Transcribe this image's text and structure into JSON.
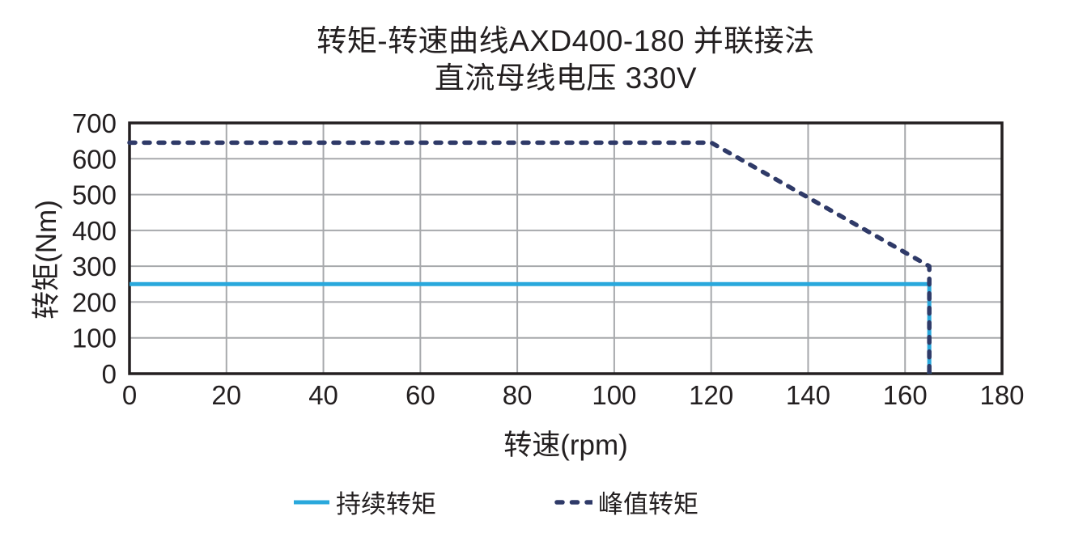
{
  "title": {
    "line1": "转矩-转速曲线AXD400-180 并联接法",
    "line2": "直流母线电压 330V"
  },
  "chart_data": {
    "type": "line",
    "title": "转矩-转速曲线AXD400-180 并联接法 直流母线电压 330V",
    "xlabel": "转速(rpm)",
    "ylabel": "转矩(Nm)",
    "xlim": [
      0,
      180
    ],
    "ylim": [
      0,
      700
    ],
    "xticks": [
      0,
      20,
      40,
      60,
      80,
      100,
      120,
      140,
      160,
      180
    ],
    "yticks": [
      0,
      100,
      200,
      300,
      400,
      500,
      600,
      700
    ],
    "grid": true,
    "grid_color": "#a7a9ac",
    "border_color": "#231f20",
    "text_color": "#231f20",
    "legend_position": "bottom",
    "series": [
      {
        "name": "持续转矩",
        "style": "solid",
        "color": "#29a8dc",
        "width": 5,
        "points": [
          [
            0,
            250
          ],
          [
            165,
            250
          ],
          [
            165,
            0
          ]
        ]
      },
      {
        "name": "峰值转矩",
        "style": "dashed",
        "color": "#2f3a68",
        "width": 5.5,
        "points": [
          [
            0,
            645
          ],
          [
            120,
            645
          ],
          [
            165,
            300
          ],
          [
            165,
            0
          ]
        ]
      }
    ]
  },
  "legend": {
    "items": [
      {
        "label": "持续转矩",
        "style": "solid",
        "color": "#29a8dc"
      },
      {
        "label": "峰值转矩",
        "style": "dashed",
        "color": "#2f3a68"
      }
    ]
  }
}
